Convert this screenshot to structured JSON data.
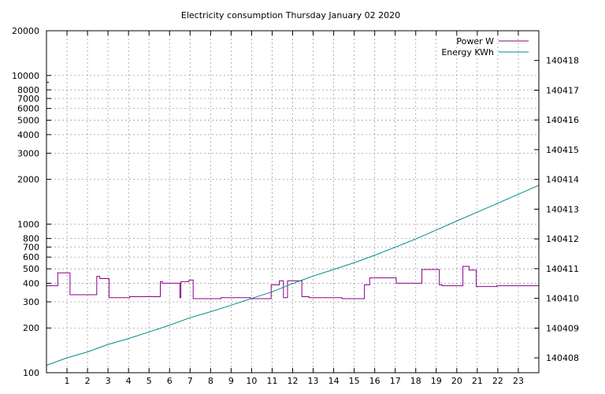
{
  "chart_data": {
    "type": "line",
    "title": "Electricity consumption Thursday January 02 2020",
    "xlabel": "",
    "ylabel": "",
    "grid": true,
    "legend_position": "top-right",
    "x_axis": {
      "range": [
        0,
        24
      ],
      "ticks": [
        1,
        2,
        3,
        4,
        5,
        6,
        7,
        8,
        9,
        10,
        11,
        12,
        13,
        14,
        15,
        16,
        17,
        18,
        19,
        20,
        21,
        22,
        23
      ]
    },
    "y_axis": {
      "scale": "log",
      "range": [
        100,
        20000
      ],
      "ticks": [
        100,
        200,
        300,
        400,
        500,
        600,
        700,
        800,
        1000,
        2000,
        3000,
        4000,
        5000,
        6000,
        7000,
        8000,
        10000,
        20000
      ]
    },
    "y2_axis": {
      "scale": "linear",
      "range": [
        140407.5,
        140419
      ],
      "ticks": [
        140408,
        140409,
        140410,
        140411,
        140412,
        140413,
        140414,
        140415,
        140416,
        140417,
        140418
      ]
    },
    "series": [
      {
        "name": "Power W",
        "axis": "y",
        "color": "#8b008b",
        "step": true,
        "points": [
          [
            0,
            385
          ],
          [
            0.55,
            470
          ],
          [
            1.15,
            335
          ],
          [
            2.45,
            445
          ],
          [
            2.6,
            430
          ],
          [
            3.05,
            320
          ],
          [
            4.05,
            325
          ],
          [
            5.55,
            410
          ],
          [
            5.65,
            400
          ],
          [
            6.5,
            320
          ],
          [
            6.55,
            410
          ],
          [
            6.95,
            420
          ],
          [
            7.15,
            315
          ],
          [
            8.5,
            320
          ],
          [
            9.95,
            315
          ],
          [
            10.95,
            390
          ],
          [
            11.35,
            415
          ],
          [
            11.55,
            320
          ],
          [
            11.75,
            415
          ],
          [
            12.45,
            325
          ],
          [
            12.8,
            320
          ],
          [
            14.4,
            315
          ],
          [
            15.5,
            390
          ],
          [
            15.75,
            435
          ],
          [
            17.05,
            400
          ],
          [
            18.3,
            495
          ],
          [
            19.15,
            390
          ],
          [
            19.3,
            385
          ],
          [
            20.3,
            520
          ],
          [
            20.6,
            490
          ],
          [
            20.95,
            380
          ],
          [
            21.95,
            385
          ],
          [
            24,
            385
          ]
        ]
      },
      {
        "name": "Energy KWh",
        "axis": "y2",
        "color": "#008b8b",
        "step": false,
        "points": [
          [
            0,
            140407.75
          ],
          [
            1,
            140408.0
          ],
          [
            2,
            140408.2
          ],
          [
            3,
            140408.45
          ],
          [
            4,
            140408.65
          ],
          [
            5,
            140408.87
          ],
          [
            6,
            140409.1
          ],
          [
            7,
            140409.35
          ],
          [
            8,
            140409.55
          ],
          [
            9,
            140409.77
          ],
          [
            10,
            140410.0
          ],
          [
            11,
            140410.22
          ],
          [
            12,
            140410.5
          ],
          [
            13,
            140410.75
          ],
          [
            14,
            140410.97
          ],
          [
            15,
            140411.2
          ],
          [
            16,
            140411.45
          ],
          [
            17,
            140411.72
          ],
          [
            18,
            140412.0
          ],
          [
            19,
            140412.3
          ],
          [
            20,
            140412.6
          ],
          [
            21,
            140412.9
          ],
          [
            22,
            140413.2
          ],
          [
            23,
            140413.5
          ],
          [
            24,
            140413.8
          ]
        ]
      }
    ]
  }
}
